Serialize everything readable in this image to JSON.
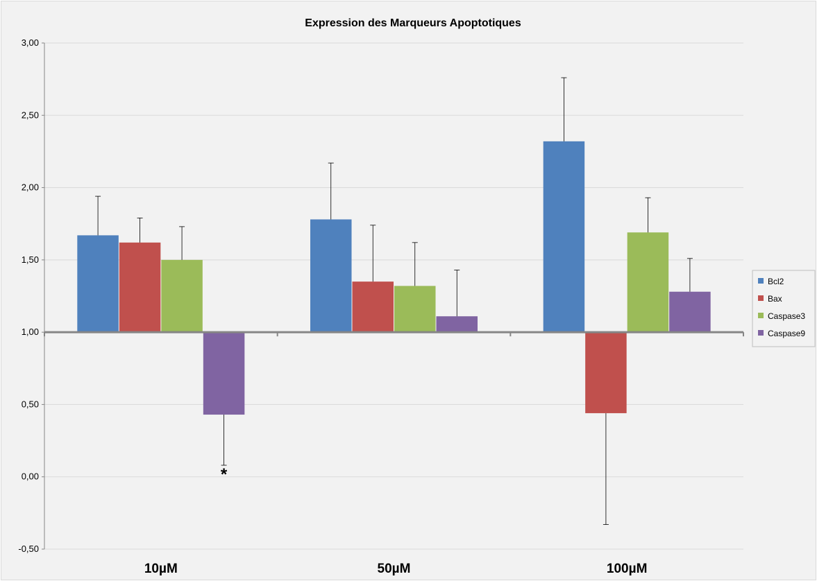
{
  "chart_data": {
    "type": "bar",
    "title": "Expression des Marqueurs Apoptotiques",
    "xlabel": "",
    "ylabel": "",
    "categories": [
      "10µM",
      "50µM",
      "100µM"
    ],
    "baseline": 1.0,
    "ylim": [
      -0.5,
      3.0
    ],
    "yticks": [
      "-0,50",
      "0,00",
      "0,50",
      "1,00",
      "1,50",
      "2,00",
      "2,50",
      "3,00"
    ],
    "ytick_values": [
      -0.5,
      0.0,
      0.5,
      1.0,
      1.5,
      2.0,
      2.5,
      3.0
    ],
    "grid": true,
    "legend_position": "right",
    "series": [
      {
        "name": "Bcl2",
        "color": "#4f81bd",
        "values": [
          1.67,
          1.78,
          2.32
        ],
        "errors": [
          0.27,
          0.39,
          0.44
        ]
      },
      {
        "name": "Bax",
        "color": "#c0504d",
        "values": [
          1.62,
          1.35,
          0.44
        ],
        "errors": [
          0.17,
          0.39,
          0.77
        ]
      },
      {
        "name": "Caspase3",
        "color": "#9bbb59",
        "values": [
          1.5,
          1.32,
          1.69
        ],
        "errors": [
          0.23,
          0.3,
          0.24
        ]
      },
      {
        "name": "Caspase9",
        "color": "#8064a2",
        "values": [
          0.43,
          1.11,
          1.28
        ],
        "errors": [
          0.35,
          0.32,
          0.23
        ]
      }
    ],
    "annotations": [
      {
        "text": "*",
        "category": "10µM",
        "series": "Caspase9"
      }
    ]
  }
}
